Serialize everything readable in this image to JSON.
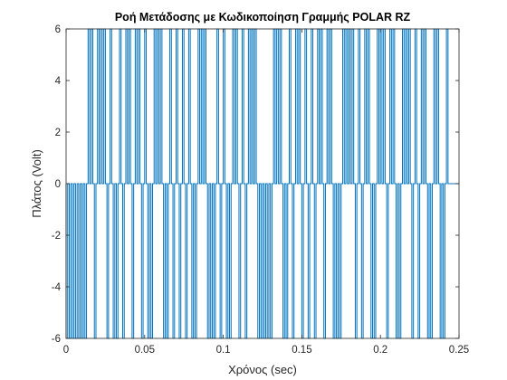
{
  "chart_data": {
    "type": "line",
    "title": "Ροή Μετάδοσης με Κωδικοποίηση Γραμμής POLAR RZ",
    "xlabel": "Χρόνος (sec)",
    "ylabel": "Πλάτος (Volt)",
    "xlim": [
      0,
      0.25
    ],
    "ylim": [
      -6,
      6
    ],
    "xticks": [
      0,
      0.05,
      0.1,
      0.15,
      0.2,
      0.25
    ],
    "xtick_labels": [
      "0",
      "0.05",
      "0.1",
      "0.15",
      "0.2",
      "0.25"
    ],
    "yticks": [
      -6,
      -4,
      -2,
      0,
      2,
      4,
      6
    ],
    "ytick_labels": [
      "-6",
      "-4",
      "-2",
      "0",
      "2",
      "4",
      "6"
    ],
    "line_color": "#0072BD",
    "grid": false,
    "series": [
      {
        "encoding": "polar-rz",
        "amplitude": 6,
        "bit_period": 0.002,
        "pulse_width": 0.001,
        "bits": [
          0,
          0,
          0,
          0,
          0,
          0,
          0,
          1,
          1,
          0,
          1,
          1,
          1,
          0,
          1,
          0,
          0,
          1,
          0,
          1,
          1,
          0,
          1,
          1,
          0,
          1,
          0,
          0,
          1,
          1,
          1,
          0,
          0,
          1,
          0,
          1,
          0,
          1,
          0,
          1,
          0,
          0,
          1,
          1,
          1,
          0,
          0,
          0,
          1,
          0,
          1,
          0,
          0,
          1,
          1,
          0,
          1,
          0,
          1,
          1,
          1,
          0,
          0,
          0,
          0,
          0,
          1,
          1,
          1,
          0,
          0,
          1,
          0,
          1,
          1,
          0,
          1,
          0,
          1,
          0,
          1,
          1,
          0,
          1,
          1,
          0,
          0,
          0,
          1,
          1,
          1,
          1,
          0,
          1,
          0,
          1,
          1,
          0,
          0,
          1,
          1,
          1,
          0,
          1,
          1,
          0,
          0,
          1,
          1,
          1,
          0,
          1,
          0,
          1,
          1,
          0,
          0,
          1,
          1,
          0,
          0,
          1
        ]
      }
    ]
  }
}
